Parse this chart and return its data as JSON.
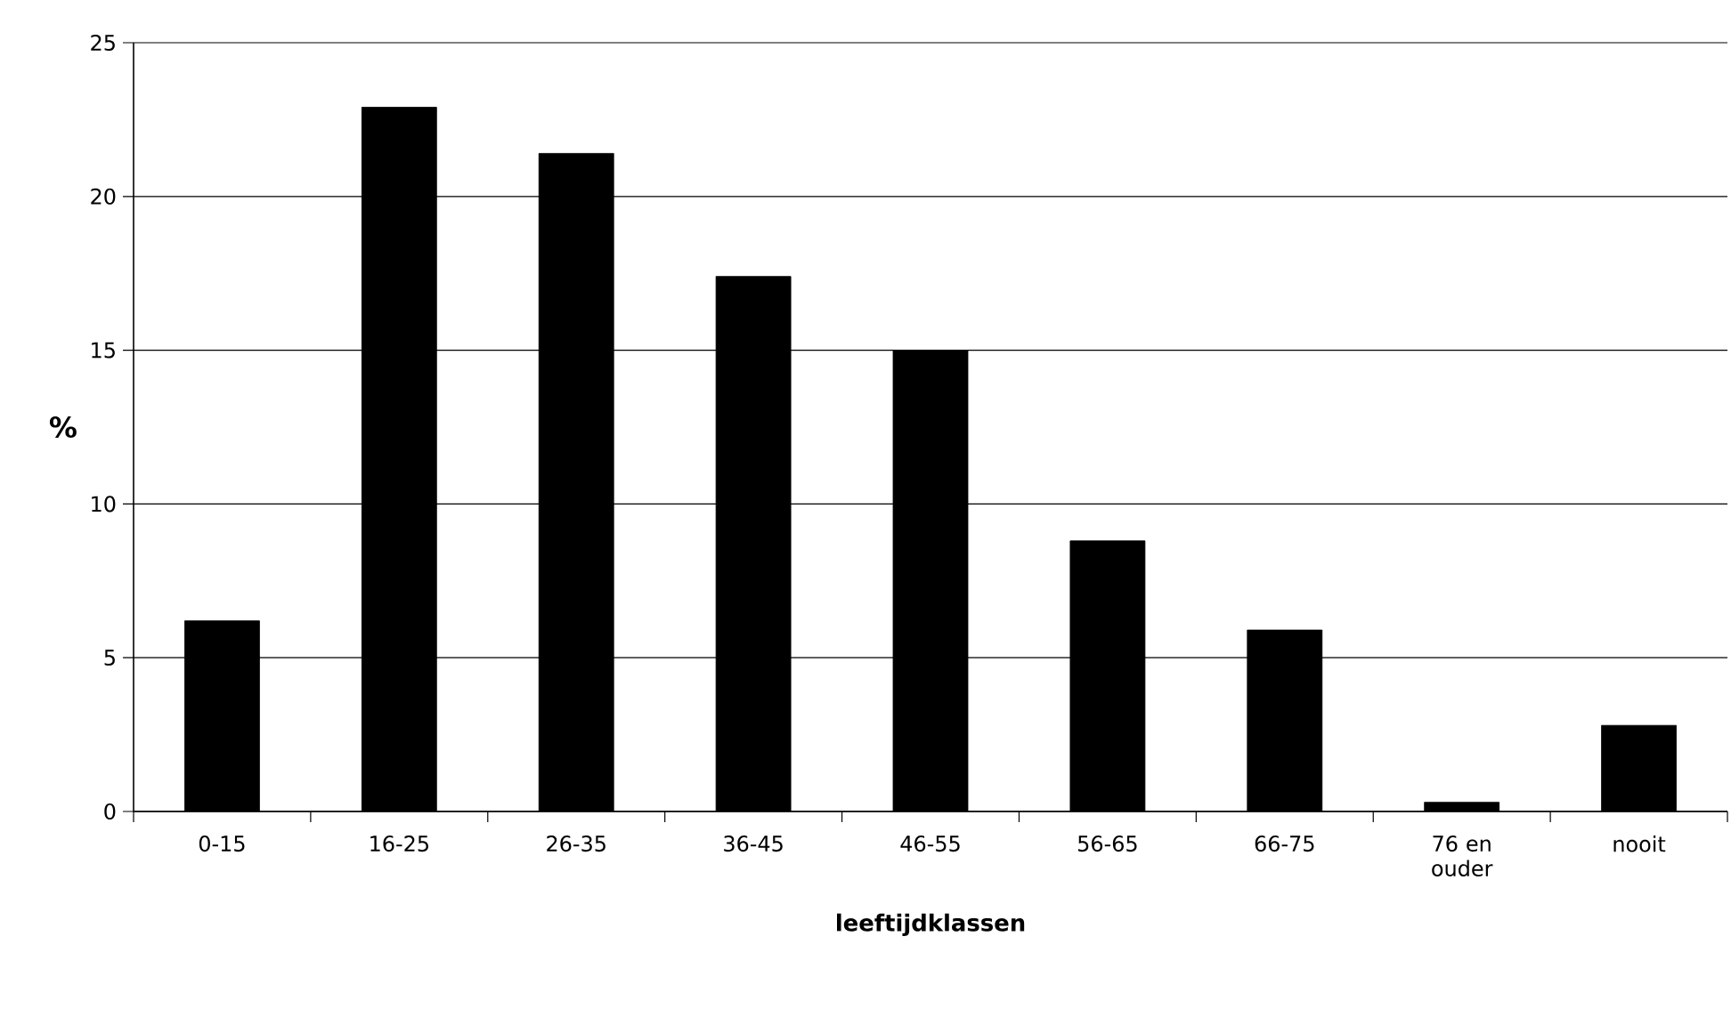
{
  "chart_data": {
    "type": "bar",
    "xlabel": "leeftijdklassen",
    "ylabel": "%",
    "categories": [
      "0-15",
      "16-25",
      "26-35",
      "36-45",
      "46-55",
      "56-65",
      "66-75",
      "76 en ouder",
      "nooit"
    ],
    "values": [
      6.2,
      22.9,
      21.4,
      17.4,
      15.0,
      8.8,
      5.9,
      0.3,
      2.8
    ],
    "color": "#000000",
    "ylim": [
      0,
      25
    ],
    "yticks": [
      0,
      5,
      10,
      15,
      20,
      25
    ],
    "grid": "y"
  }
}
